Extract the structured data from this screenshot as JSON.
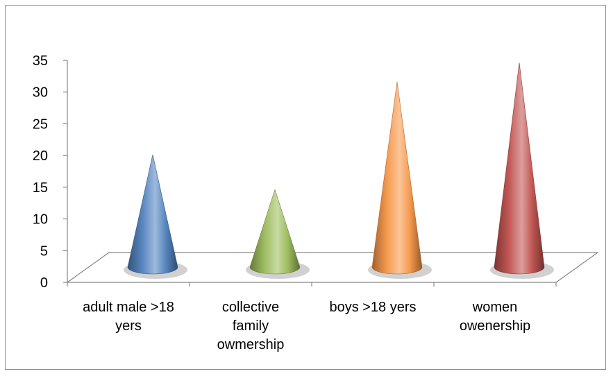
{
  "chart_data": {
    "type": "bar",
    "style": "3d-cone",
    "categories": [
      [
        "adult male >18",
        "yers"
      ],
      [
        "collective",
        "family",
        "owmership"
      ],
      [
        "boys >18 yers"
      ],
      [
        "women",
        "owenership"
      ]
    ],
    "values": [
      21,
      15.5,
      32.5,
      35.5
    ],
    "colors": [
      "#4f81bd",
      "#9bbb59",
      "#f79646",
      "#c0504d"
    ],
    "yticks": [
      0,
      5,
      10,
      15,
      20,
      25,
      30,
      35
    ],
    "ylim": [
      0,
      35
    ],
    "title": "",
    "xlabel": "",
    "ylabel": "",
    "grid": false,
    "legend": "none"
  }
}
